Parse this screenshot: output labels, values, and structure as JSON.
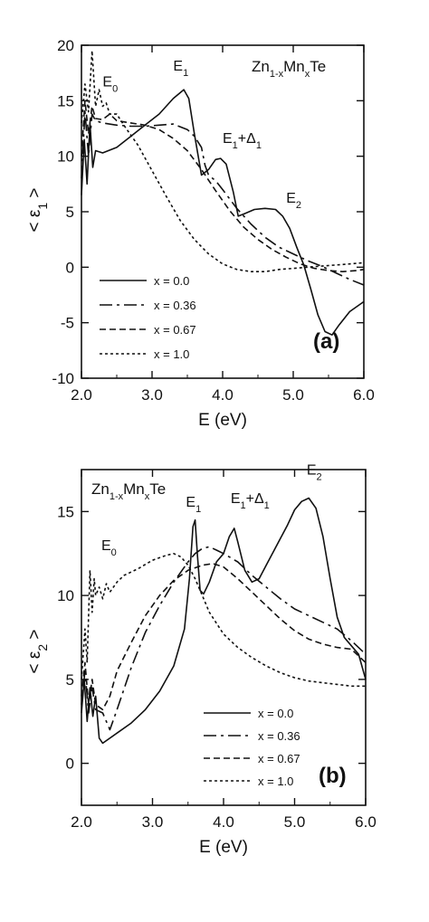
{
  "chart_data": [
    {
      "type": "line",
      "title": "Zn1-xMnxTe",
      "formula": {
        "base": "Zn",
        "sub1": "1-x",
        "mid": "Mn",
        "sub2": "x",
        "end": "Te"
      },
      "panel_label": "(a)",
      "xlabel": "E (eV)",
      "ylabel": {
        "main": "< ε",
        "sub": "1",
        "close": " >"
      },
      "xlim": [
        2.0,
        6.0
      ],
      "ylim": [
        -10,
        20
      ],
      "x_ticks": [
        "2.0",
        "3.0",
        "4.0",
        "5.0",
        "6.0"
      ],
      "y_ticks": [
        "-10",
        "-5",
        "0",
        "5",
        "10",
        "15",
        "20"
      ],
      "legend_position": "lower-left",
      "annotations": [
        {
          "label": "E",
          "sub": "0",
          "x": 2.3,
          "y": 16.3
        },
        {
          "label": "E",
          "sub": "1",
          "x": 3.3,
          "y": 17.7
        },
        {
          "label": "E",
          "sub": "1",
          "tail": "+Δ",
          "tail_sub": "1",
          "x": 4.0,
          "y": 11.2
        },
        {
          "label": "E",
          "sub": "2",
          "x": 4.9,
          "y": 5.8
        }
      ],
      "series": [
        {
          "name": "x = 0.0",
          "dash": "solid",
          "x": [
            2.0,
            2.04,
            2.08,
            2.12,
            2.16,
            2.2,
            2.3,
            2.5,
            2.7,
            2.9,
            3.1,
            3.3,
            3.45,
            3.52,
            3.6,
            3.7,
            3.8,
            3.9,
            3.97,
            4.05,
            4.15,
            4.22,
            4.3,
            4.45,
            4.6,
            4.75,
            4.85,
            4.95,
            5.05,
            5.15,
            5.25,
            5.35,
            5.45,
            5.55,
            5.65,
            5.8,
            6.0
          ],
          "y": [
            6.5,
            11.5,
            7.5,
            13,
            9,
            10.5,
            10.3,
            10.8,
            11.8,
            12.8,
            13.8,
            15.2,
            16,
            15.2,
            12,
            8.3,
            8.8,
            9.7,
            9.8,
            9.3,
            6.8,
            4.6,
            4.8,
            5.2,
            5.3,
            5.2,
            4.6,
            3.5,
            1.8,
            0.2,
            -2,
            -4.3,
            -5.8,
            -6.1,
            -5.2,
            -4,
            -3.1
          ]
        },
        {
          "name": "x = 0.36",
          "dash": "long-dash",
          "x": [
            2.0,
            2.05,
            2.1,
            2.15,
            2.2,
            2.3,
            2.5,
            2.7,
            2.9,
            3.1,
            3.3,
            3.5,
            3.6,
            3.7,
            3.75,
            3.8,
            3.9,
            4.0,
            4.2,
            4.4,
            4.6,
            4.8,
            5.0,
            5.2,
            5.4,
            5.6,
            5.8,
            6.0
          ],
          "y": [
            8,
            14,
            10,
            13.8,
            13.2,
            13,
            12.8,
            12.7,
            12.7,
            12.8,
            12.9,
            12.4,
            11.8,
            10.8,
            9.2,
            8.3,
            7.8,
            7,
            5.3,
            3.9,
            2.7,
            1.8,
            1.2,
            0.6,
            0.1,
            -0.5,
            -1.1,
            -1.6
          ]
        },
        {
          "name": "x = 0.67",
          "dash": "medium-dash",
          "x": [
            2.0,
            2.05,
            2.1,
            2.15,
            2.2,
            2.3,
            2.4,
            2.5,
            2.7,
            2.9,
            3.1,
            3.3,
            3.5,
            3.7,
            3.9,
            4.1,
            4.3,
            4.5,
            4.7,
            4.9,
            5.1,
            5.3,
            5.5,
            5.7,
            5.9,
            6.0
          ],
          "y": [
            10,
            15,
            12,
            14.5,
            13.4,
            13.3,
            13.8,
            13.2,
            13,
            12.8,
            12.4,
            11.6,
            10.5,
            8.8,
            6.9,
            5.1,
            3.6,
            2.5,
            1.6,
            0.9,
            0.3,
            -0.1,
            -0.3,
            -0.4,
            -0.3,
            -0.2
          ]
        },
        {
          "name": "x = 1.0",
          "dash": "short-dash",
          "x": [
            2.0,
            2.05,
            2.1,
            2.15,
            2.2,
            2.25,
            2.3,
            2.35,
            2.4,
            2.5,
            2.6,
            2.8,
            3.0,
            3.2,
            3.4,
            3.6,
            3.8,
            4.0,
            4.2,
            4.4,
            4.6,
            4.8,
            5.0,
            5.2,
            5.4,
            5.6,
            5.8,
            6.0
          ],
          "y": [
            13,
            16.5,
            14,
            19.5,
            14.5,
            16,
            14.5,
            14.8,
            13.8,
            13.8,
            12.8,
            11,
            8.7,
            6.4,
            4.2,
            2.5,
            1.2,
            0.3,
            -0.2,
            -0.4,
            -0.4,
            -0.2,
            -0.1,
            0,
            0.1,
            0.2,
            0.3,
            0.4
          ]
        }
      ]
    },
    {
      "type": "line",
      "title": "Zn1-xMnxTe",
      "formula": {
        "base": "Zn",
        "sub1": "1-x",
        "mid": "Mn",
        "sub2": "x",
        "end": "Te"
      },
      "panel_label": "(b)",
      "xlabel": "E (eV)",
      "ylabel": {
        "main": "< ε",
        "sub": "2",
        "close": " >"
      },
      "xlim": [
        2.0,
        6.0
      ],
      "ylim": [
        -2.5,
        17.5
      ],
      "x_ticks": [
        "2.0",
        "3.0",
        "4.0",
        "5.0",
        "6.0"
      ],
      "y_ticks": [
        "0",
        "5",
        "10",
        "15"
      ],
      "legend_position": "lower-right",
      "annotations": [
        {
          "label": "E",
          "sub": "0",
          "x": 2.28,
          "y": 12.7
        },
        {
          "label": "E",
          "sub": "1",
          "x": 3.47,
          "y": 15.3
        },
        {
          "label": "E",
          "sub": "1",
          "tail": "+Δ",
          "tail_sub": "1",
          "x": 4.1,
          "y": 15.5
        },
        {
          "label": "E",
          "sub": "2",
          "x": 5.17,
          "y": 17.2
        }
      ],
      "series": [
        {
          "name": "x = 0.0",
          "dash": "solid",
          "x": [
            2.0,
            2.04,
            2.08,
            2.12,
            2.16,
            2.2,
            2.25,
            2.3,
            2.5,
            2.7,
            2.9,
            3.1,
            3.3,
            3.45,
            3.52,
            3.57,
            3.6,
            3.63,
            3.67,
            3.72,
            3.8,
            3.9,
            4.0,
            4.08,
            4.15,
            4.2,
            4.3,
            4.4,
            4.5,
            4.6,
            4.7,
            4.8,
            4.9,
            5.0,
            5.1,
            5.2,
            5.3,
            5.4,
            5.5,
            5.6,
            5.7,
            5.8,
            5.9,
            6.0
          ],
          "y": [
            3,
            5,
            2.5,
            4.5,
            2.8,
            4,
            1.5,
            1.2,
            1.8,
            2.4,
            3.2,
            4.3,
            5.8,
            8,
            11,
            14.1,
            14.5,
            12.5,
            10.3,
            10.1,
            10.8,
            12,
            12.5,
            13.5,
            14,
            13.2,
            11.5,
            10.8,
            11,
            11.8,
            12.6,
            13.4,
            14.2,
            15.1,
            15.6,
            15.8,
            15.2,
            13.5,
            11,
            8.7,
            7.5,
            7,
            6.5,
            5
          ]
        },
        {
          "name": "x = 0.36",
          "dash": "long-dash",
          "x": [
            2.0,
            2.05,
            2.1,
            2.15,
            2.2,
            2.3,
            2.4,
            2.5,
            2.7,
            2.9,
            3.1,
            3.3,
            3.5,
            3.6,
            3.7,
            3.8,
            3.9,
            4.0,
            4.2,
            4.4,
            4.6,
            4.8,
            5.0,
            5.2,
            5.4,
            5.6,
            5.8,
            6.0
          ],
          "y": [
            3.5,
            5.5,
            3,
            4.5,
            3.2,
            3,
            2,
            3.2,
            5.7,
            7.8,
            9.4,
            10.8,
            12,
            12.5,
            12.8,
            12.9,
            12.7,
            12.5,
            12,
            11.2,
            10.5,
            9.8,
            9.2,
            8.8,
            8.4,
            8,
            7.3,
            6.5
          ]
        },
        {
          "name": "x = 0.67",
          "dash": "medium-dash",
          "x": [
            2.0,
            2.05,
            2.1,
            2.15,
            2.2,
            2.3,
            2.4,
            2.5,
            2.7,
            2.9,
            3.1,
            3.3,
            3.5,
            3.7,
            3.85,
            4.0,
            4.2,
            4.4,
            4.6,
            4.8,
            5.0,
            5.2,
            5.4,
            5.6,
            5.8,
            6.0
          ],
          "y": [
            4,
            6,
            3.5,
            5,
            3.5,
            3.2,
            4,
            5.5,
            7.2,
            8.8,
            10,
            10.9,
            11.5,
            11.8,
            11.9,
            11.7,
            11,
            10.2,
            9.4,
            8.6,
            7.9,
            7.4,
            7.1,
            6.9,
            6.8,
            6
          ]
        },
        {
          "name": "x = 1.0",
          "dash": "short-dash",
          "x": [
            2.0,
            2.05,
            2.08,
            2.12,
            2.15,
            2.18,
            2.2,
            2.25,
            2.3,
            2.35,
            2.4,
            2.5,
            2.6,
            2.8,
            3.0,
            3.2,
            3.3,
            3.4,
            3.5,
            3.6,
            3.7,
            3.8,
            4.0,
            4.2,
            4.4,
            4.6,
            4.8,
            5.0,
            5.2,
            5.4,
            5.6,
            5.8,
            6.0
          ],
          "y": [
            5,
            8,
            6,
            11.5,
            9,
            11,
            10,
            10.5,
            9.8,
            10.7,
            10.2,
            10.8,
            11.2,
            11.6,
            12.1,
            12.4,
            12.5,
            12.3,
            11.8,
            11,
            10,
            9,
            7.7,
            6.9,
            6.3,
            5.8,
            5.4,
            5.1,
            4.9,
            4.8,
            4.7,
            4.6,
            4.6
          ]
        }
      ]
    }
  ]
}
